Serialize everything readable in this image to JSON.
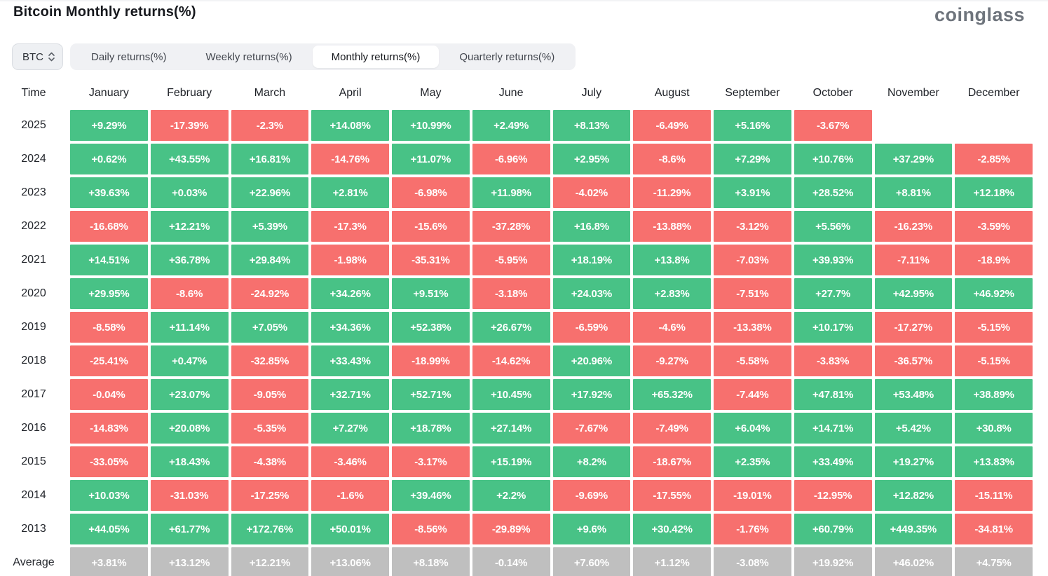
{
  "page": {
    "title": "Bitcoin Monthly returns(%)",
    "brand": "coinglass"
  },
  "controls": {
    "symbol_select": {
      "value": "BTC"
    },
    "tabs": [
      {
        "id": "daily",
        "label": "Daily returns(%)",
        "active": false
      },
      {
        "id": "weekly",
        "label": "Weekly returns(%)",
        "active": false
      },
      {
        "id": "monthly",
        "label": "Monthly returns(%)",
        "active": true
      },
      {
        "id": "quarterly",
        "label": "Quarterly returns(%)",
        "active": false
      }
    ]
  },
  "colors": {
    "positive": "#48c286",
    "negative": "#f7706e",
    "average": "#bfbfbf"
  },
  "table": {
    "time_header": "Time"
  },
  "chart_data": {
    "type": "heatmap",
    "title": "Bitcoin Monthly returns(%)",
    "unit": "%",
    "columns": [
      "January",
      "February",
      "March",
      "April",
      "May",
      "June",
      "July",
      "August",
      "September",
      "October",
      "November",
      "December"
    ],
    "rows": [
      {
        "label": "2025",
        "average": false,
        "values": [
          9.29,
          -17.39,
          -2.3,
          14.08,
          10.99,
          2.49,
          8.13,
          -6.49,
          5.16,
          -3.67,
          null,
          null
        ],
        "display": [
          "+9.29%",
          "-17.39%",
          "-2.3%",
          "+14.08%",
          "+10.99%",
          "+2.49%",
          "+8.13%",
          "-6.49%",
          "+5.16%",
          "-3.67%",
          "",
          ""
        ]
      },
      {
        "label": "2024",
        "average": false,
        "values": [
          0.62,
          43.55,
          16.81,
          -14.76,
          11.07,
          -6.96,
          2.95,
          -8.6,
          7.29,
          10.76,
          37.29,
          -2.85
        ],
        "display": [
          "+0.62%",
          "+43.55%",
          "+16.81%",
          "-14.76%",
          "+11.07%",
          "-6.96%",
          "+2.95%",
          "-8.6%",
          "+7.29%",
          "+10.76%",
          "+37.29%",
          "-2.85%"
        ]
      },
      {
        "label": "2023",
        "average": false,
        "values": [
          39.63,
          0.03,
          22.96,
          2.81,
          -6.98,
          11.98,
          -4.02,
          -11.29,
          3.91,
          28.52,
          8.81,
          12.18
        ],
        "display": [
          "+39.63%",
          "+0.03%",
          "+22.96%",
          "+2.81%",
          "-6.98%",
          "+11.98%",
          "-4.02%",
          "-11.29%",
          "+3.91%",
          "+28.52%",
          "+8.81%",
          "+12.18%"
        ]
      },
      {
        "label": "2022",
        "average": false,
        "values": [
          -16.68,
          12.21,
          5.39,
          -17.3,
          -15.6,
          -37.28,
          16.8,
          -13.88,
          -3.12,
          5.56,
          -16.23,
          -3.59
        ],
        "display": [
          "-16.68%",
          "+12.21%",
          "+5.39%",
          "-17.3%",
          "-15.6%",
          "-37.28%",
          "+16.8%",
          "-13.88%",
          "-3.12%",
          "+5.56%",
          "-16.23%",
          "-3.59%"
        ]
      },
      {
        "label": "2021",
        "average": false,
        "values": [
          14.51,
          36.78,
          29.84,
          -1.98,
          -35.31,
          -5.95,
          18.19,
          13.8,
          -7.03,
          39.93,
          -7.11,
          -18.9
        ],
        "display": [
          "+14.51%",
          "+36.78%",
          "+29.84%",
          "-1.98%",
          "-35.31%",
          "-5.95%",
          "+18.19%",
          "+13.8%",
          "-7.03%",
          "+39.93%",
          "-7.11%",
          "-18.9%"
        ]
      },
      {
        "label": "2020",
        "average": false,
        "values": [
          29.95,
          -8.6,
          -24.92,
          34.26,
          9.51,
          -3.18,
          24.03,
          2.83,
          -7.51,
          27.7,
          42.95,
          46.92
        ],
        "display": [
          "+29.95%",
          "-8.6%",
          "-24.92%",
          "+34.26%",
          "+9.51%",
          "-3.18%",
          "+24.03%",
          "+2.83%",
          "-7.51%",
          "+27.7%",
          "+42.95%",
          "+46.92%"
        ]
      },
      {
        "label": "2019",
        "average": false,
        "values": [
          -8.58,
          11.14,
          7.05,
          34.36,
          52.38,
          26.67,
          -6.59,
          -4.6,
          -13.38,
          10.17,
          -17.27,
          -5.15
        ],
        "display": [
          "-8.58%",
          "+11.14%",
          "+7.05%",
          "+34.36%",
          "+52.38%",
          "+26.67%",
          "-6.59%",
          "-4.6%",
          "-13.38%",
          "+10.17%",
          "-17.27%",
          "-5.15%"
        ]
      },
      {
        "label": "2018",
        "average": false,
        "values": [
          -25.41,
          0.47,
          -32.85,
          33.43,
          -18.99,
          -14.62,
          20.96,
          -9.27,
          -5.58,
          -3.83,
          -36.57,
          -5.15
        ],
        "display": [
          "-25.41%",
          "+0.47%",
          "-32.85%",
          "+33.43%",
          "-18.99%",
          "-14.62%",
          "+20.96%",
          "-9.27%",
          "-5.58%",
          "-3.83%",
          "-36.57%",
          "-5.15%"
        ]
      },
      {
        "label": "2017",
        "average": false,
        "values": [
          -0.04,
          23.07,
          -9.05,
          32.71,
          52.71,
          10.45,
          17.92,
          65.32,
          -7.44,
          47.81,
          53.48,
          38.89
        ],
        "display": [
          "-0.04%",
          "+23.07%",
          "-9.05%",
          "+32.71%",
          "+52.71%",
          "+10.45%",
          "+17.92%",
          "+65.32%",
          "-7.44%",
          "+47.81%",
          "+53.48%",
          "+38.89%"
        ]
      },
      {
        "label": "2016",
        "average": false,
        "values": [
          -14.83,
          20.08,
          -5.35,
          7.27,
          18.78,
          27.14,
          -7.67,
          -7.49,
          6.04,
          14.71,
          5.42,
          30.8
        ],
        "display": [
          "-14.83%",
          "+20.08%",
          "-5.35%",
          "+7.27%",
          "+18.78%",
          "+27.14%",
          "-7.67%",
          "-7.49%",
          "+6.04%",
          "+14.71%",
          "+5.42%",
          "+30.8%"
        ]
      },
      {
        "label": "2015",
        "average": false,
        "values": [
          -33.05,
          18.43,
          -4.38,
          -3.46,
          -3.17,
          15.19,
          8.2,
          -18.67,
          2.35,
          33.49,
          19.27,
          13.83
        ],
        "display": [
          "-33.05%",
          "+18.43%",
          "-4.38%",
          "-3.46%",
          "-3.17%",
          "+15.19%",
          "+8.2%",
          "-18.67%",
          "+2.35%",
          "+33.49%",
          "+19.27%",
          "+13.83%"
        ]
      },
      {
        "label": "2014",
        "average": false,
        "values": [
          10.03,
          -31.03,
          -17.25,
          -1.6,
          39.46,
          2.2,
          -9.69,
          -17.55,
          -19.01,
          -12.95,
          12.82,
          -15.11
        ],
        "display": [
          "+10.03%",
          "-31.03%",
          "-17.25%",
          "-1.6%",
          "+39.46%",
          "+2.2%",
          "-9.69%",
          "-17.55%",
          "-19.01%",
          "-12.95%",
          "+12.82%",
          "-15.11%"
        ]
      },
      {
        "label": "2013",
        "average": false,
        "values": [
          44.05,
          61.77,
          172.76,
          50.01,
          -8.56,
          -29.89,
          9.6,
          30.42,
          -1.76,
          60.79,
          449.35,
          -34.81
        ],
        "display": [
          "+44.05%",
          "+61.77%",
          "+172.76%",
          "+50.01%",
          "-8.56%",
          "-29.89%",
          "+9.6%",
          "+30.42%",
          "-1.76%",
          "+60.79%",
          "+449.35%",
          "-34.81%"
        ]
      },
      {
        "label": "Average",
        "average": true,
        "values": [
          3.81,
          13.12,
          12.21,
          13.06,
          8.18,
          -0.14,
          7.6,
          1.12,
          -3.08,
          19.92,
          46.02,
          4.75
        ],
        "display": [
          "+3.81%",
          "+13.12%",
          "+12.21%",
          "+13.06%",
          "+8.18%",
          "-0.14%",
          "+7.60%",
          "+1.12%",
          "-3.08%",
          "+19.92%",
          "+46.02%",
          "+4.75%"
        ]
      }
    ]
  }
}
